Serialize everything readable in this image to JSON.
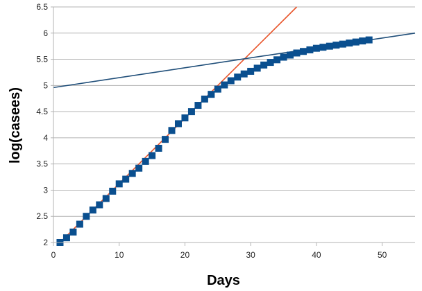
{
  "chart_data": {
    "type": "scatter",
    "title": "",
    "xlabel": "Days",
    "ylabel": "log(casees)",
    "xlim": [
      0,
      55
    ],
    "ylim": [
      2,
      6.5
    ],
    "x_ticks": [
      0,
      10,
      20,
      30,
      40,
      50
    ],
    "y_ticks": [
      2,
      2.5,
      3,
      3.5,
      4,
      4.5,
      5,
      5.5,
      6,
      6.5
    ],
    "y_tick_labels": [
      "2",
      "2.5",
      "3",
      "3.5",
      "4",
      "4.5",
      "5",
      "5.5",
      "6",
      "6.5"
    ],
    "grid": "horizontal",
    "legend": "none",
    "series": [
      {
        "marker": "square",
        "color": "#0a4f8f",
        "points": [
          [
            1,
            2.0
          ],
          [
            2,
            2.09
          ],
          [
            3,
            2.2
          ],
          [
            4,
            2.35
          ],
          [
            5,
            2.5
          ],
          [
            6,
            2.62
          ],
          [
            7,
            2.72
          ],
          [
            8,
            2.84
          ],
          [
            9,
            2.98
          ],
          [
            10,
            3.12
          ],
          [
            11,
            3.21
          ],
          [
            12,
            3.32
          ],
          [
            13,
            3.42
          ],
          [
            14,
            3.55
          ],
          [
            15,
            3.66
          ],
          [
            16,
            3.8
          ],
          [
            17,
            3.97
          ],
          [
            18,
            4.14
          ],
          [
            19,
            4.27
          ],
          [
            20,
            4.38
          ],
          [
            21,
            4.5
          ],
          [
            22,
            4.62
          ],
          [
            23,
            4.74
          ],
          [
            24,
            4.83
          ],
          [
            25,
            4.93
          ],
          [
            26,
            5.01
          ],
          [
            27,
            5.09
          ],
          [
            28,
            5.16
          ],
          [
            29,
            5.22
          ],
          [
            30,
            5.27
          ],
          [
            31,
            5.33
          ],
          [
            32,
            5.39
          ],
          [
            33,
            5.44
          ],
          [
            34,
            5.49
          ],
          [
            35,
            5.54
          ],
          [
            36,
            5.58
          ],
          [
            37,
            5.62
          ],
          [
            38,
            5.65
          ],
          [
            39,
            5.68
          ],
          [
            40,
            5.71
          ],
          [
            41,
            5.73
          ],
          [
            42,
            5.75
          ],
          [
            43,
            5.77
          ],
          [
            44,
            5.79
          ],
          [
            45,
            5.81
          ],
          [
            46,
            5.83
          ],
          [
            47,
            5.85
          ],
          [
            48,
            5.87
          ]
        ]
      }
    ],
    "lines": [
      {
        "color": "#e8542a",
        "from": [
          1,
          2.0
        ],
        "to": [
          37,
          6.5
        ]
      },
      {
        "color": "#1f4e79",
        "from": [
          0,
          4.96
        ],
        "to": [
          55,
          6.0
        ]
      }
    ]
  }
}
